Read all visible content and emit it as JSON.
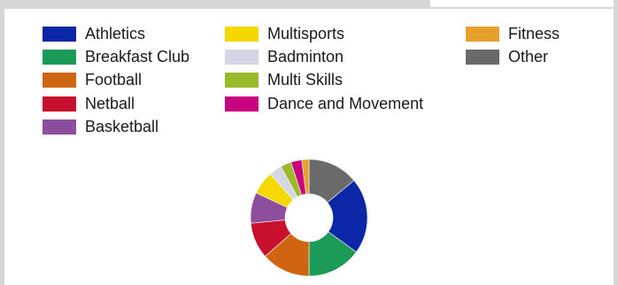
{
  "chart_data": {
    "type": "pie",
    "title": "",
    "subtitle": "",
    "legend_position": "top",
    "style": "donut",
    "series": [
      {
        "name": "Athletics",
        "value": 21.0,
        "color": "#0b27a8"
      },
      {
        "name": "Breakfast Club",
        "value": 15.0,
        "color": "#1c9a57"
      },
      {
        "name": "Football",
        "value": 13.5,
        "color": "#d06511"
      },
      {
        "name": "Netball",
        "value": 10.0,
        "color": "#c8102e"
      },
      {
        "name": "Basketball",
        "value": 8.5,
        "color": "#8e4e9e"
      },
      {
        "name": "Multisports",
        "value": 6.5,
        "color": "#f4d800"
      },
      {
        "name": "Badminton",
        "value": 3.5,
        "color": "#d3d6e4"
      },
      {
        "name": "Multi Skills",
        "value": 3.0,
        "color": "#9ab92b"
      },
      {
        "name": "Dance and Movement",
        "value": 3.0,
        "color": "#c8057e"
      },
      {
        "name": "Fitness",
        "value": 2.0,
        "color": "#e6a12d"
      },
      {
        "name": "Other",
        "value": 14.0,
        "color": "#6a6a6a"
      }
    ]
  }
}
